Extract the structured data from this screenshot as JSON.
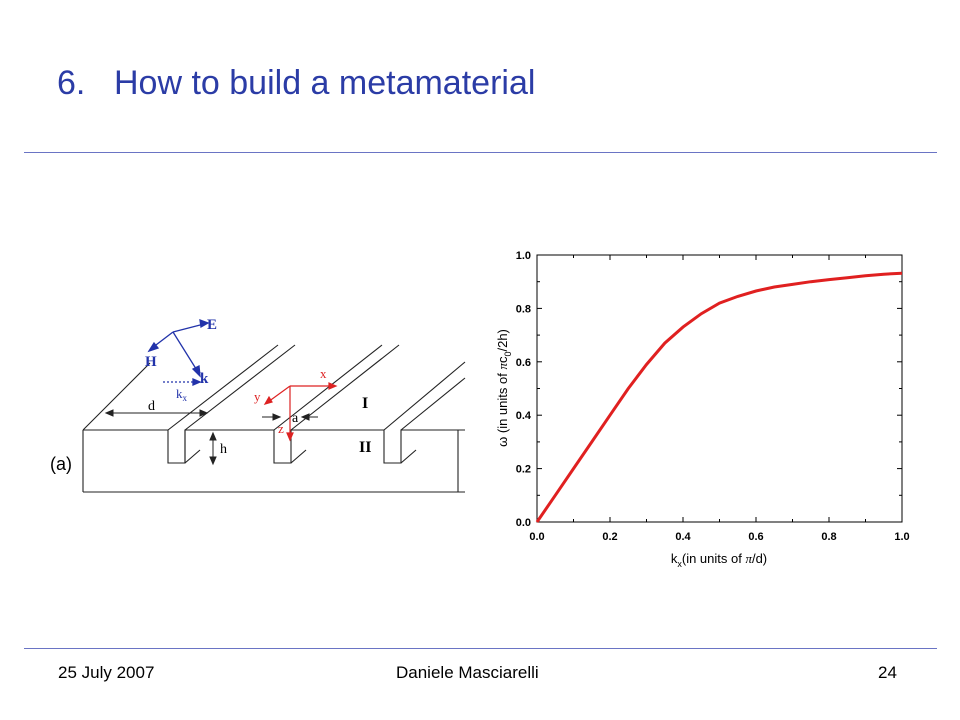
{
  "slide": {
    "number": "6.",
    "title": "How to build a metamaterial"
  },
  "diagram": {
    "panel_label": "(a)",
    "labels": {
      "E": "E",
      "H": "H",
      "k": "k",
      "kx": "k",
      "kx_sub": "x",
      "d": "d",
      "h": "h",
      "a": "a",
      "x": "x",
      "y": "y",
      "z": "z",
      "region1": "I",
      "region2": "II"
    },
    "colors": {
      "field": "#2233aa",
      "axes": "#dd2222",
      "lines": "#222222"
    }
  },
  "chart_data": {
    "type": "line",
    "xlabel_parts": [
      "k",
      "x",
      "(in units of ",
      "π",
      "/d)"
    ],
    "ylabel_parts": [
      "ω (in units of ",
      "π",
      "c",
      "0",
      "/2h)"
    ],
    "xlim": [
      0.0,
      1.0
    ],
    "ylim": [
      0.0,
      1.0
    ],
    "xticks": [
      "0.0",
      "0.2",
      "0.4",
      "0.6",
      "0.8",
      "1.0"
    ],
    "yticks": [
      "0.0",
      "0.2",
      "0.4",
      "0.6",
      "0.8",
      "1.0"
    ],
    "grid": false,
    "series": [
      {
        "color": "#e02020",
        "x": [
          0.0,
          0.05,
          0.1,
          0.15,
          0.2,
          0.25,
          0.3,
          0.35,
          0.4,
          0.45,
          0.5,
          0.55,
          0.6,
          0.65,
          0.7,
          0.75,
          0.8,
          0.85,
          0.9,
          0.95,
          1.0
        ],
        "y": [
          0.0,
          0.1,
          0.2,
          0.3,
          0.4,
          0.5,
          0.59,
          0.67,
          0.73,
          0.78,
          0.82,
          0.845,
          0.865,
          0.88,
          0.89,
          0.9,
          0.908,
          0.915,
          0.922,
          0.928,
          0.932
        ]
      }
    ]
  },
  "footer": {
    "date": "25 July 2007",
    "author": "Daniele Masciarelli",
    "page": "24"
  }
}
